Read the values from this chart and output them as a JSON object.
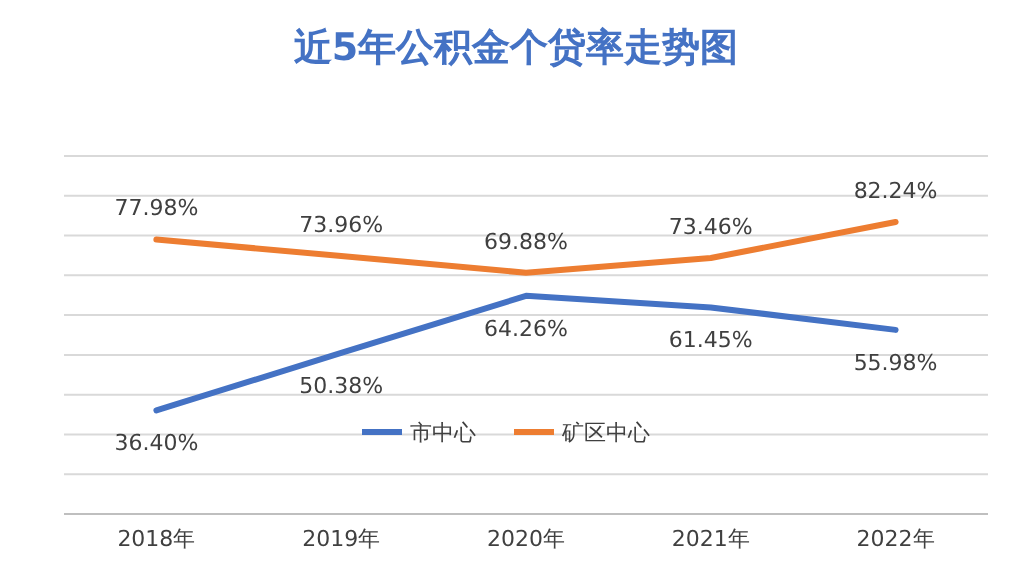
{
  "chart_data": {
    "type": "line",
    "title": "近5年公积金个贷率走势图",
    "categories": [
      "2018年",
      "2019年",
      "2020年",
      "2021年",
      "2022年"
    ],
    "series": [
      {
        "name": "市中心",
        "color": "#4472c4",
        "values": [
          36.4,
          50.38,
          64.26,
          61.45,
          55.98
        ],
        "value_labels": [
          "36.40%",
          "50.38%",
          "64.26%",
          "61.45%",
          "55.98%"
        ]
      },
      {
        "name": "矿区中心",
        "color": "#ed7d31",
        "values": [
          77.98,
          73.96,
          69.88,
          73.46,
          82.24
        ],
        "value_labels": [
          "77.98%",
          "73.96%",
          "69.88%",
          "73.46%",
          "82.24%"
        ]
      }
    ],
    "grid": "y",
    "legend": "bottom",
    "marker": "none",
    "line_style": "solid"
  }
}
